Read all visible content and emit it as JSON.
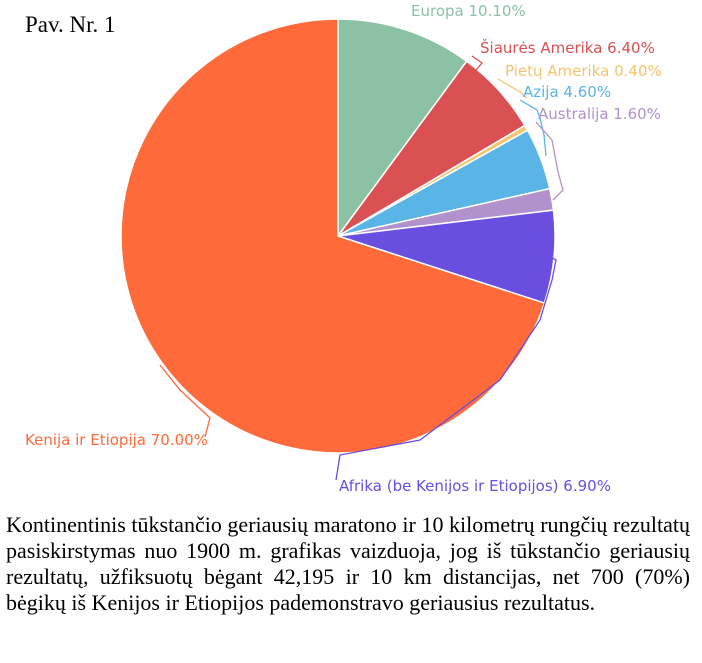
{
  "figure_label": "Pav. Nr. 1",
  "caption": "Kontinentinis tūkstančio geriausių maratono ir 10 kilometrų rungčių rezultatų pasiskirstymas nuo 1900 m. grafikas vaizduoja, jog iš tūkstančio geriausių rezultatų, užfiksuotų bėgant 42,195 ir 10 km distancijas, net 700 (70%) bėgikų iš Kenijos ir Etiopijos pademonstravo geriausius rezultatus.",
  "chart_data": {
    "type": "pie",
    "start_angle_deg": 0,
    "direction": "clockwise",
    "slices": [
      {
        "name": "Europa",
        "value": 10.1,
        "label": "Europa 10.10%",
        "color": "#8cc2a4"
      },
      {
        "name": "Šiaurės Amerika",
        "value": 6.4,
        "label": "Šiaurės Amerika 6.40%",
        "color": "#db5052"
      },
      {
        "name": "Pietų Amerika",
        "value": 0.4,
        "label": "Pietų Amerika 0.40%",
        "color": "#f4c56e"
      },
      {
        "name": "Azija",
        "value": 4.6,
        "label": "Azija 4.60%",
        "color": "#5ab4e6"
      },
      {
        "name": "Australija",
        "value": 1.6,
        "label": "Australija 1.60%",
        "color": "#b192cd"
      },
      {
        "name": "Afrika (be Kenijos ir Etiopijos)",
        "value": 6.9,
        "label": "Afrika (be Kenijos ir Etiopijos) 6.90%",
        "color": "#6a4ee0"
      },
      {
        "name": "Kenija ir Etiopija",
        "value": 70.0,
        "label": "Kenija ir Etiopija 70.00%",
        "color": "#fe6a39"
      }
    ]
  }
}
